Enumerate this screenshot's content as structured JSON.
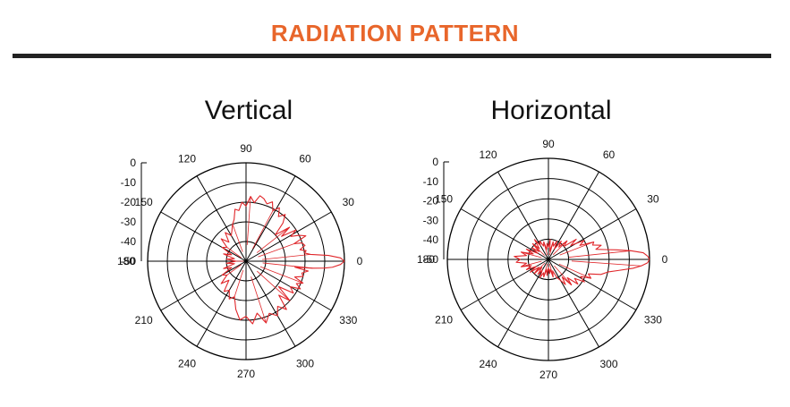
{
  "header": {
    "title": "RADIATION PATTERN",
    "rule_color": "#222222",
    "title_color": "#e8662b"
  },
  "colors": {
    "grid": "#000000",
    "trace": "#e0262a"
  },
  "chart_data": [
    {
      "type": "polar",
      "title": "Vertical",
      "angle_labels": [
        "0",
        "30",
        "60",
        "90",
        "120",
        "150",
        "180",
        "210",
        "240",
        "270",
        "300",
        "330"
      ],
      "angle_values": [
        0,
        30,
        60,
        90,
        120,
        150,
        180,
        210,
        240,
        270,
        300,
        330
      ],
      "radial_labels": [
        "0",
        "-10",
        "-20",
        "-30",
        "-40",
        "-50"
      ],
      "radial_range": [
        -50,
        0
      ],
      "grid": true,
      "series": [
        {
          "values": [
            [
              0,
              0
            ],
            [
              2,
              -2
            ],
            [
              4,
              -8
            ],
            [
              6,
              -17
            ],
            [
              8,
              -20
            ],
            [
              10,
              -19
            ],
            [
              12,
              -22
            ],
            [
              15,
              -19
            ],
            [
              18,
              -20
            ],
            [
              20,
              -24
            ],
            [
              23,
              -17
            ],
            [
              26,
              -20
            ],
            [
              29,
              -24
            ],
            [
              32,
              -20
            ],
            [
              35,
              -28
            ],
            [
              38,
              -22
            ],
            [
              42,
              -30
            ],
            [
              46,
              -23
            ],
            [
              50,
              -19
            ],
            [
              54,
              -22
            ],
            [
              58,
              -18
            ],
            [
              62,
              -21
            ],
            [
              66,
              -17
            ],
            [
              70,
              -19
            ],
            [
              74,
              -17
            ],
            [
              78,
              -16
            ],
            [
              82,
              -20
            ],
            [
              86,
              -17
            ],
            [
              90,
              -22
            ],
            [
              94,
              -20
            ],
            [
              98,
              -24
            ],
            [
              102,
              -23
            ],
            [
              106,
              -28
            ],
            [
              110,
              -30
            ],
            [
              115,
              -33
            ],
            [
              120,
              -35
            ],
            [
              126,
              -32
            ],
            [
              132,
              -37
            ],
            [
              138,
              -33
            ],
            [
              144,
              -38
            ],
            [
              150,
              -36
            ],
            [
              156,
              -42
            ],
            [
              162,
              -38
            ],
            [
              168,
              -44
            ],
            [
              174,
              -40
            ],
            [
              180,
              -45
            ],
            [
              186,
              -40
            ],
            [
              192,
              -44
            ],
            [
              198,
              -38
            ],
            [
              204,
              -42
            ],
            [
              210,
              -36
            ],
            [
              216,
              -38
            ],
            [
              222,
              -33
            ],
            [
              228,
              -37
            ],
            [
              234,
              -31
            ],
            [
              240,
              -33
            ],
            [
              246,
              -29
            ],
            [
              252,
              -31
            ],
            [
              258,
              -25
            ],
            [
              264,
              -20
            ],
            [
              270,
              -22
            ],
            [
              276,
              -18
            ],
            [
              282,
              -23
            ],
            [
              288,
              -17
            ],
            [
              294,
              -21
            ],
            [
              300,
              -18
            ],
            [
              305,
              -22
            ],
            [
              310,
              -18
            ],
            [
              314,
              -26
            ],
            [
              318,
              -20
            ],
            [
              322,
              -29
            ],
            [
              326,
              -21
            ],
            [
              330,
              -24
            ],
            [
              333,
              -19
            ],
            [
              336,
              -22
            ],
            [
              339,
              -19
            ],
            [
              342,
              -24
            ],
            [
              345,
              -20
            ],
            [
              348,
              -21
            ],
            [
              351,
              -18
            ],
            [
              353,
              -25
            ],
            [
              354,
              -16
            ],
            [
              355,
              -10
            ],
            [
              356,
              -6
            ],
            [
              358,
              -2
            ],
            [
              360,
              0
            ]
          ]
        }
      ]
    },
    {
      "type": "polar",
      "title": "Horizontal",
      "angle_labels": [
        "0",
        "30",
        "60",
        "90",
        "120",
        "150",
        "180",
        "210",
        "240",
        "270",
        "300",
        "330"
      ],
      "angle_values": [
        0,
        30,
        60,
        90,
        120,
        150,
        180,
        210,
        240,
        270,
        300,
        330
      ],
      "radial_labels": [
        "0",
        "-10",
        "-20",
        "-30",
        "-40",
        "-50"
      ],
      "radial_range": [
        -50,
        0
      ],
      "grid": true,
      "series": [
        {
          "values": [
            [
              0,
              0
            ],
            [
              2,
              -1
            ],
            [
              4,
              -3
            ],
            [
              6,
              -9
            ],
            [
              8,
              -16
            ],
            [
              10,
              -22
            ],
            [
              12,
              -26
            ],
            [
              15,
              -23
            ],
            [
              18,
              -27
            ],
            [
              21,
              -26
            ],
            [
              24,
              -33
            ],
            [
              28,
              -30
            ],
            [
              32,
              -37
            ],
            [
              36,
              -33
            ],
            [
              40,
              -40
            ],
            [
              45,
              -37
            ],
            [
              50,
              -42
            ],
            [
              55,
              -39
            ],
            [
              60,
              -44
            ],
            [
              65,
              -40
            ],
            [
              70,
              -43
            ],
            [
              75,
              -41
            ],
            [
              80,
              -46
            ],
            [
              85,
              -40
            ],
            [
              90,
              -44
            ],
            [
              95,
              -42
            ],
            [
              100,
              -45
            ],
            [
              105,
              -41
            ],
            [
              110,
              -43
            ],
            [
              115,
              -40
            ],
            [
              120,
              -42
            ],
            [
              125,
              -38
            ],
            [
              130,
              -43
            ],
            [
              135,
              -39
            ],
            [
              140,
              -44
            ],
            [
              145,
              -40
            ],
            [
              150,
              -44
            ],
            [
              155,
              -38
            ],
            [
              160,
              -42
            ],
            [
              165,
              -36
            ],
            [
              170,
              -39
            ],
            [
              175,
              -33
            ],
            [
              180,
              -36
            ],
            [
              185,
              -34
            ],
            [
              190,
              -39
            ],
            [
              195,
              -36
            ],
            [
              200,
              -41
            ],
            [
              205,
              -38
            ],
            [
              210,
              -43
            ],
            [
              215,
              -39
            ],
            [
              220,
              -44
            ],
            [
              225,
              -40
            ],
            [
              230,
              -45
            ],
            [
              235,
              -41
            ],
            [
              240,
              -44
            ],
            [
              245,
              -40
            ],
            [
              250,
              -43
            ],
            [
              255,
              -41
            ],
            [
              260,
              -45
            ],
            [
              265,
              -42
            ],
            [
              270,
              -46
            ],
            [
              275,
              -43
            ],
            [
              280,
              -45
            ],
            [
              285,
              -41
            ],
            [
              290,
              -44
            ],
            [
              295,
              -40
            ],
            [
              300,
              -38
            ],
            [
              304,
              -35
            ],
            [
              308,
              -39
            ],
            [
              312,
              -33
            ],
            [
              316,
              -37
            ],
            [
              320,
              -31
            ],
            [
              324,
              -34
            ],
            [
              328,
              -29
            ],
            [
              332,
              -32
            ],
            [
              336,
              -27
            ],
            [
              340,
              -29
            ],
            [
              344,
              -23
            ],
            [
              348,
              -20
            ],
            [
              351,
              -15
            ],
            [
              354,
              -8
            ],
            [
              356,
              -4
            ],
            [
              358,
              -1
            ],
            [
              360,
              0
            ]
          ]
        }
      ]
    }
  ]
}
